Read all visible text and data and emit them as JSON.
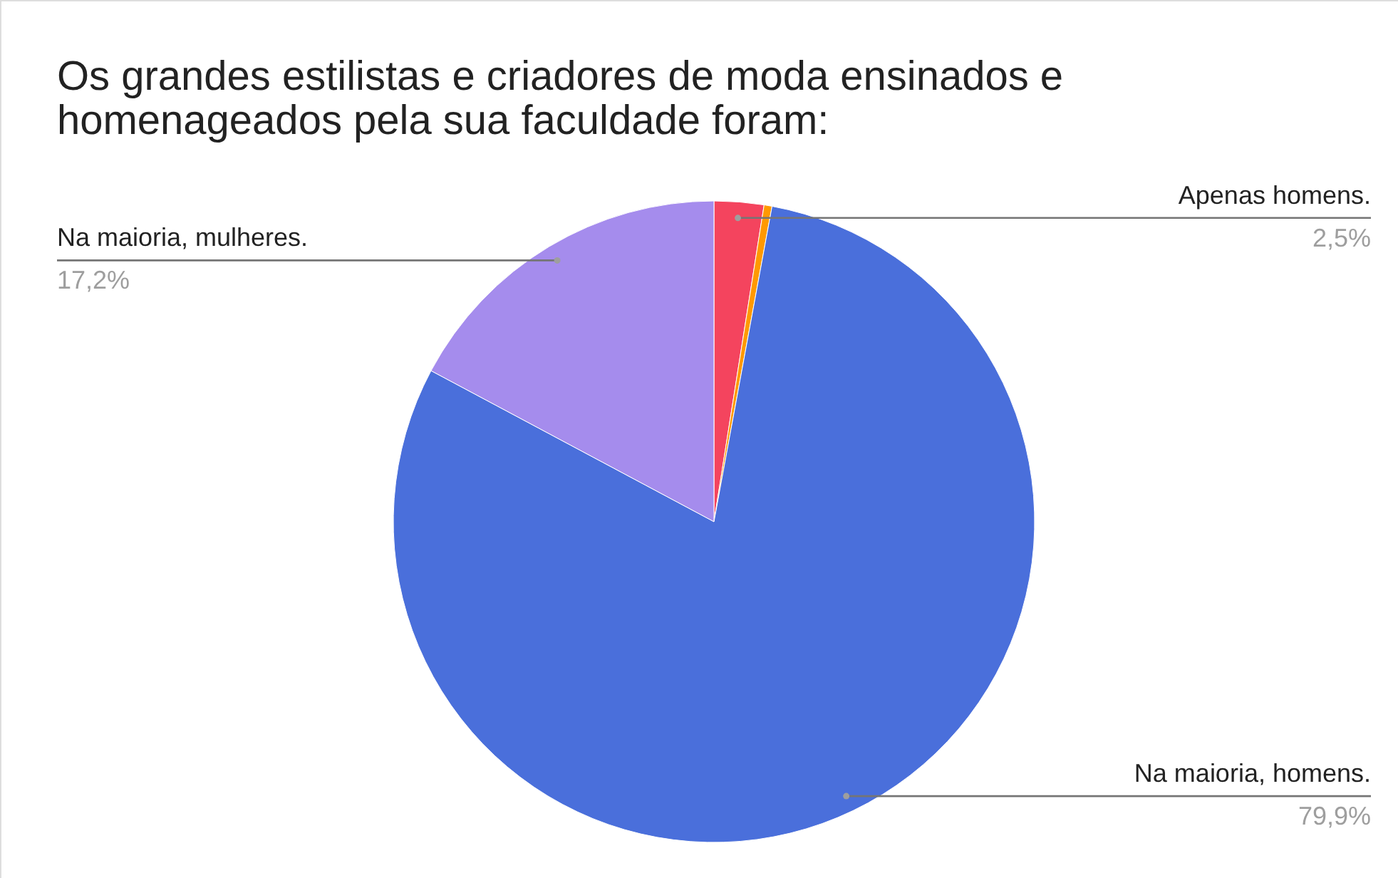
{
  "chart_data": {
    "type": "pie",
    "title": "Os grandes estilistas e criadores de moda ensinados e homenageados pela sua faculdade foram:",
    "categories": [
      "Apenas homens.",
      null,
      "Na maioria, homens.",
      "Na maioria, mulheres."
    ],
    "values": [
      2.5,
      0.4,
      79.9,
      17.2
    ],
    "colors": [
      "#f4445e",
      "#ff9900",
      "#4a6fdb",
      "#a58ced"
    ],
    "value_labels": [
      "2,5%",
      null,
      "79,9%",
      "17,2%"
    ],
    "legend": false
  }
}
